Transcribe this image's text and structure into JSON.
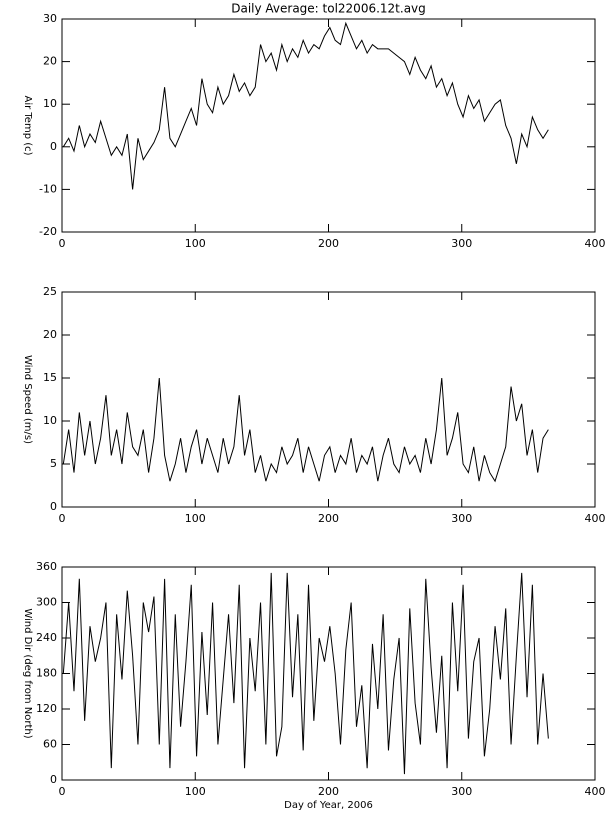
{
  "chart_data": [
    {
      "type": "line",
      "title": "Daily Average: tol22006.12t.avg",
      "ylabel": "Air Temp (c)",
      "x": [
        1,
        5,
        9,
        13,
        17,
        21,
        25,
        29,
        33,
        37,
        41,
        45,
        49,
        53,
        57,
        61,
        65,
        69,
        73,
        77,
        81,
        85,
        89,
        93,
        97,
        101,
        105,
        109,
        113,
        117,
        121,
        125,
        129,
        133,
        137,
        141,
        145,
        149,
        153,
        157,
        161,
        165,
        169,
        173,
        177,
        181,
        185,
        189,
        193,
        197,
        201,
        205,
        209,
        213,
        217,
        221,
        225,
        229,
        233,
        237,
        241,
        245,
        249,
        253,
        257,
        261,
        265,
        269,
        273,
        277,
        281,
        285,
        289,
        293,
        297,
        301,
        305,
        309,
        313,
        317,
        321,
        325,
        329,
        333,
        337,
        341,
        345,
        349,
        353,
        357,
        361,
        365
      ],
      "values": [
        0,
        2,
        -1,
        5,
        0,
        3,
        1,
        6,
        2,
        -2,
        0,
        -2,
        3,
        -10,
        2,
        -3,
        -1,
        1,
        4,
        14,
        2,
        0,
        3,
        6,
        9,
        5,
        16,
        10,
        8,
        14,
        10,
        12,
        17,
        13,
        15,
        12,
        14,
        24,
        20,
        22,
        18,
        24,
        20,
        23,
        21,
        25,
        22,
        24,
        23,
        26,
        28,
        25,
        24,
        29,
        26,
        23,
        25,
        22,
        24,
        23,
        23,
        23,
        22,
        21,
        20,
        17,
        21,
        18,
        16,
        19,
        14,
        16,
        12,
        15,
        10,
        7,
        12,
        9,
        11,
        6,
        8,
        10,
        11,
        5,
        2,
        -4,
        3,
        0,
        7,
        4,
        2,
        4
      ],
      "color": "#000000",
      "xlim": [
        0,
        400
      ],
      "xticks": [
        0,
        100,
        200,
        300,
        400
      ],
      "ylim": [
        -20,
        30
      ],
      "yticks": [
        -20,
        -10,
        0,
        10,
        20,
        30
      ]
    },
    {
      "type": "line",
      "ylabel": "Wind Speed (m/s)",
      "x": [
        1,
        5,
        9,
        13,
        17,
        21,
        25,
        29,
        33,
        37,
        41,
        45,
        49,
        53,
        57,
        61,
        65,
        69,
        73,
        77,
        81,
        85,
        89,
        93,
        97,
        101,
        105,
        109,
        113,
        117,
        121,
        125,
        129,
        133,
        137,
        141,
        145,
        149,
        153,
        157,
        161,
        165,
        169,
        173,
        177,
        181,
        185,
        189,
        193,
        197,
        201,
        205,
        209,
        213,
        217,
        221,
        225,
        229,
        233,
        237,
        241,
        245,
        249,
        253,
        257,
        261,
        265,
        269,
        273,
        277,
        281,
        285,
        289,
        293,
        297,
        301,
        305,
        309,
        313,
        317,
        321,
        325,
        329,
        333,
        337,
        341,
        345,
        349,
        353,
        357,
        361,
        365
      ],
      "values": [
        5,
        9,
        4,
        11,
        6,
        10,
        5,
        8,
        13,
        6,
        9,
        5,
        11,
        7,
        6,
        9,
        4,
        8,
        15,
        6,
        3,
        5,
        8,
        4,
        7,
        9,
        5,
        8,
        6,
        4,
        8,
        5,
        7,
        13,
        6,
        9,
        4,
        6,
        3,
        5,
        4,
        7,
        5,
        6,
        8,
        4,
        7,
        5,
        3,
        6,
        7,
        4,
        6,
        5,
        8,
        4,
        6,
        5,
        7,
        3,
        6,
        8,
        5,
        4,
        7,
        5,
        6,
        4,
        8,
        5,
        9,
        15,
        6,
        8,
        11,
        5,
        4,
        7,
        3,
        6,
        4,
        3,
        5,
        7,
        14,
        10,
        12,
        6,
        9,
        4,
        8,
        9
      ],
      "color": "#000000",
      "xlim": [
        0,
        400
      ],
      "xticks": [
        0,
        100,
        200,
        300,
        400
      ],
      "ylim": [
        0,
        25
      ],
      "yticks": [
        0,
        5,
        10,
        15,
        20,
        25
      ]
    },
    {
      "type": "line",
      "ylabel": "Wind Dir (deg from North)",
      "xlabel": "Day of Year, 2006",
      "x": [
        1,
        5,
        9,
        13,
        17,
        21,
        25,
        29,
        33,
        37,
        41,
        45,
        49,
        53,
        57,
        61,
        65,
        69,
        73,
        77,
        81,
        85,
        89,
        93,
        97,
        101,
        105,
        109,
        113,
        117,
        121,
        125,
        129,
        133,
        137,
        141,
        145,
        149,
        153,
        157,
        161,
        165,
        169,
        173,
        177,
        181,
        185,
        189,
        193,
        197,
        201,
        205,
        209,
        213,
        217,
        221,
        225,
        229,
        233,
        237,
        241,
        245,
        249,
        253,
        257,
        261,
        265,
        269,
        273,
        277,
        281,
        285,
        289,
        293,
        297,
        301,
        305,
        309,
        313,
        317,
        321,
        325,
        329,
        333,
        337,
        341,
        345,
        349,
        353,
        357,
        361,
        365
      ],
      "values": [
        180,
        300,
        150,
        340,
        100,
        260,
        200,
        240,
        300,
        20,
        280,
        170,
        320,
        210,
        60,
        300,
        250,
        310,
        60,
        340,
        20,
        280,
        90,
        200,
        330,
        40,
        250,
        110,
        300,
        60,
        170,
        280,
        130,
        330,
        20,
        240,
        150,
        300,
        60,
        350,
        40,
        90,
        350,
        140,
        280,
        50,
        330,
        100,
        240,
        200,
        260,
        180,
        60,
        220,
        300,
        90,
        160,
        20,
        230,
        120,
        280,
        50,
        170,
        240,
        10,
        290,
        130,
        60,
        340,
        190,
        80,
        210,
        20,
        300,
        150,
        330,
        70,
        200,
        240,
        40,
        120,
        260,
        170,
        290,
        60,
        210,
        350,
        140,
        330,
        60,
        180,
        70
      ],
      "color": "#000000",
      "xlim": [
        0,
        400
      ],
      "xticks": [
        0,
        100,
        200,
        300,
        400
      ],
      "ylim": [
        0,
        360
      ],
      "yticks": [
        0,
        60,
        120,
        180,
        240,
        300,
        360
      ]
    }
  ]
}
